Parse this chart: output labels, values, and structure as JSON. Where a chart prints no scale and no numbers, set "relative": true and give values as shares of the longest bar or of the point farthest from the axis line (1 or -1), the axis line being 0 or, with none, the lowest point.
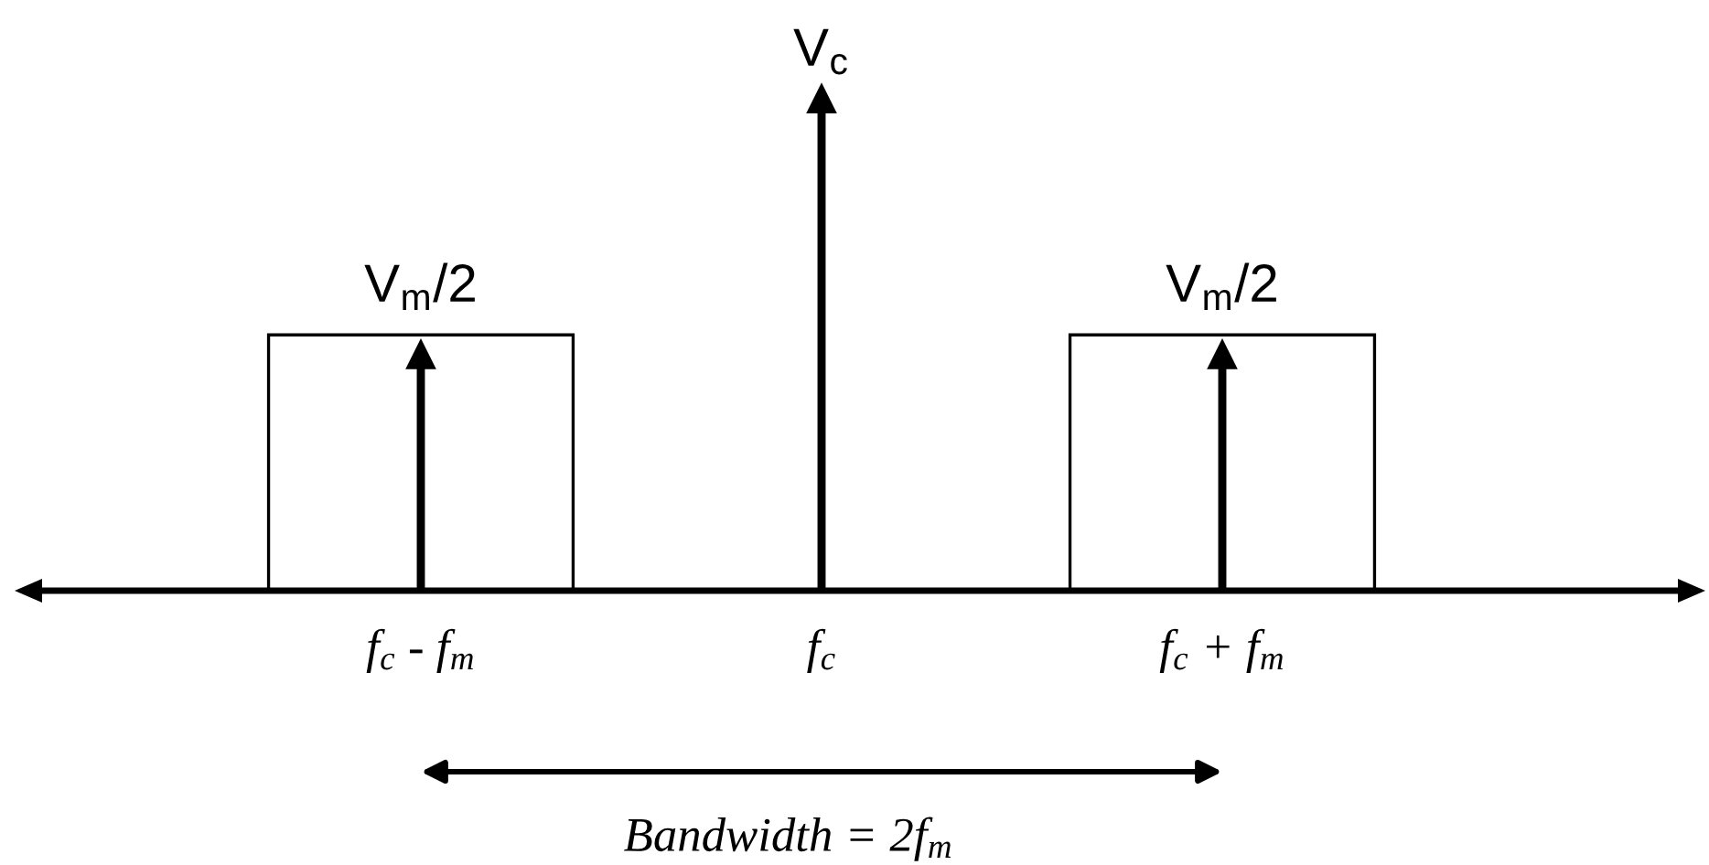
{
  "chart_data": {
    "type": "lollipop",
    "relative": true,
    "marker": "triangle",
    "tick_labels": "x",
    "categories": [
      "f$_{c}$ - f$_{m}$",
      "f$_{c}$",
      "f$_{c}$ + f$_{m}$"
    ],
    "series": [
      {
        "type": "bar",
        "color": "#000000",
        "values": [
          0.52,
          null,
          0.52
        ]
      },
      {
        "color": "#000000",
        "values": [
          0.48,
          1,
          0.48
        ]
      }
    ],
    "annotations": [
      {
        "text": "V$_{c}$",
        "x": "f$_{c}$",
        "y": 1
      },
      {
        "text": "V$_{m}$/2",
        "x": "f$_{c}$ - f$_{m}$",
        "y": 0.52
      },
      {
        "text": "V$_{m}$/2",
        "x": "f$_{c}$ + f$_{m}$",
        "y": 0.52
      },
      "Bandwidth = 2f$_{m}$"
    ]
  }
}
